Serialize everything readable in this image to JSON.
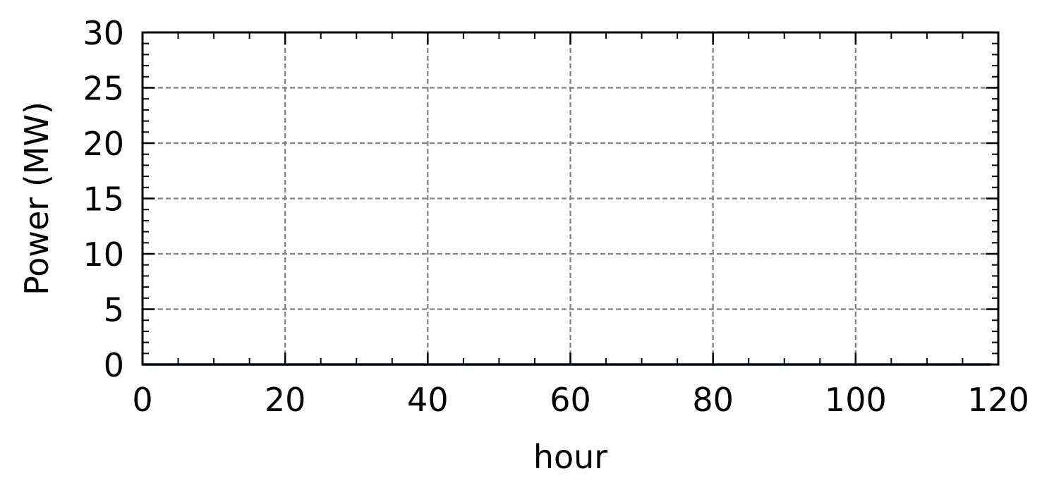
{
  "chart_data": {
    "type": "line",
    "title": "",
    "xlabel": "hour",
    "ylabel": "Power (MW)",
    "xlim": [
      0,
      120
    ],
    "ylim": [
      0,
      30
    ],
    "xticks": [
      0,
      20,
      40,
      60,
      80,
      100,
      120
    ],
    "yticks": [
      0,
      5,
      10,
      15,
      20,
      25,
      30
    ],
    "x_minor_step": 5,
    "y_minor_step": 1,
    "grid": true,
    "grid_style": "dashed",
    "colors": {
      "series": "#0b1a7a",
      "grid": "#808080",
      "axes": "#000000"
    },
    "series": [
      {
        "x": [
          0,
          10,
          20,
          30,
          40,
          50,
          60,
          70,
          80,
          90,
          100,
          110,
          119
        ],
        "values": [
          0,
          0,
          0,
          0,
          0,
          0,
          0,
          0,
          0,
          0,
          0,
          0,
          0
        ]
      }
    ]
  }
}
